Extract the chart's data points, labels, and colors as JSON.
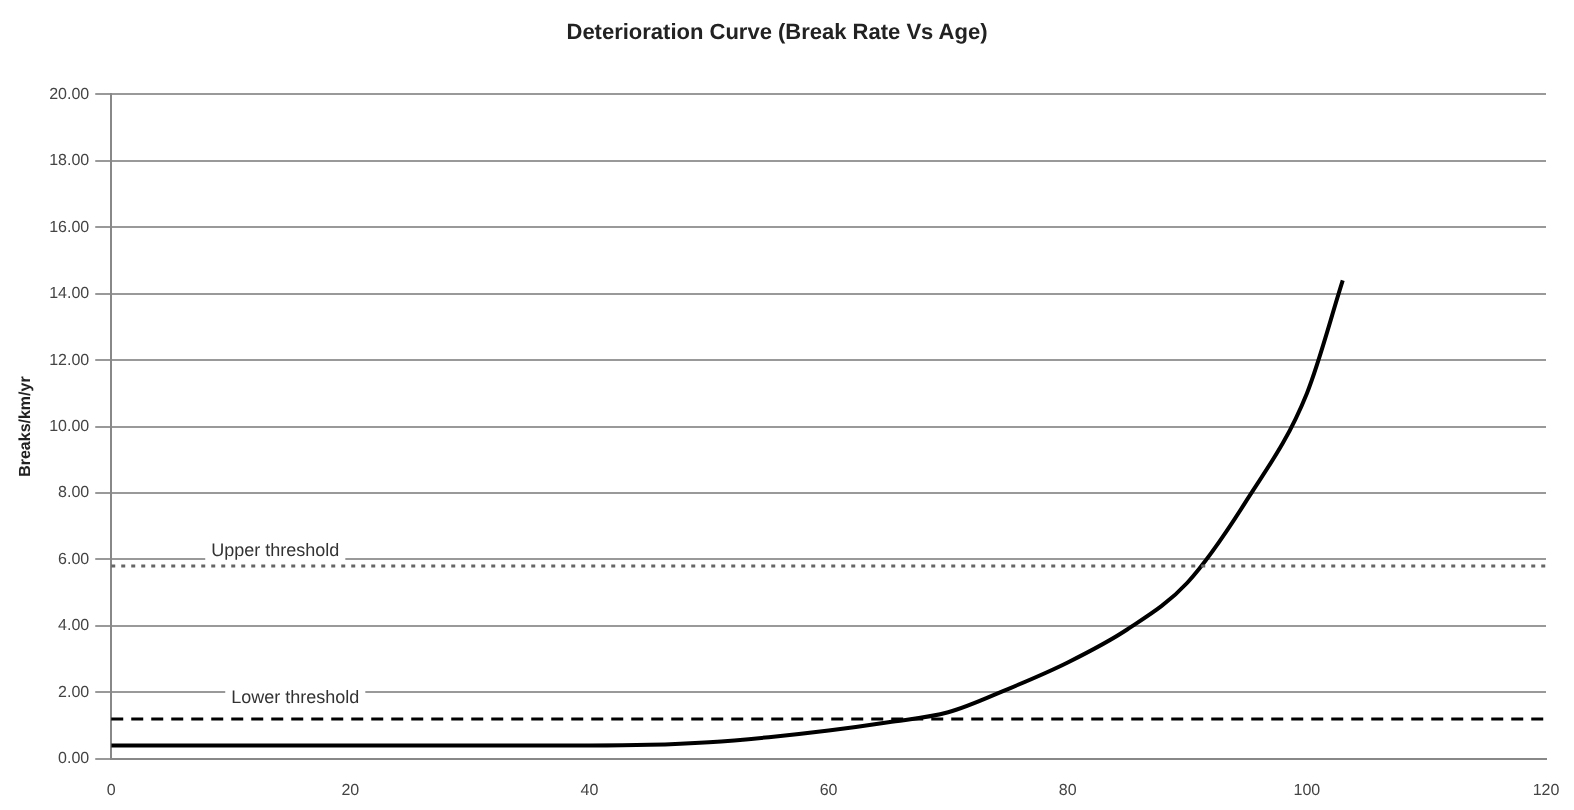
{
  "chart_data": {
    "type": "line",
    "title": "Deterioration Curve (Break Rate Vs Age)",
    "ylabel": "Breaks/km/yr",
    "x": [
      0,
      10,
      20,
      30,
      40,
      45,
      50,
      55,
      60,
      65,
      70,
      75,
      80,
      85,
      90,
      95,
      100,
      103
    ],
    "series": [
      {
        "color": "#000000",
        "values": [
          0.4,
          0.4,
          0.4,
          0.4,
          0.4,
          0.42,
          0.5,
          0.65,
          0.85,
          1.1,
          1.4,
          2.1,
          2.9,
          3.9,
          5.3,
          7.8,
          11.0,
          14.4
        ]
      }
    ],
    "xlim": [
      0,
      120
    ],
    "xticks": [
      0,
      20,
      40,
      60,
      80,
      100,
      120
    ],
    "ylim": [
      0,
      20
    ],
    "yticks": [
      {
        "value": 0,
        "label": "0.00"
      },
      {
        "value": 2,
        "label": "2.00"
      },
      {
        "value": 4,
        "label": "4.00"
      },
      {
        "value": 6,
        "label": "6.00"
      },
      {
        "value": 8,
        "label": "8.00"
      },
      {
        "value": 10,
        "label": "10.00"
      },
      {
        "value": 12,
        "label": "12.00"
      },
      {
        "value": 14,
        "label": "14.00"
      },
      {
        "value": 16,
        "label": "16.00"
      },
      {
        "value": 18,
        "label": "18.00"
      },
      {
        "value": 20,
        "label": "20.00"
      }
    ],
    "ref_lines": [
      {
        "axis": "y",
        "value": 5.8,
        "label": "Upper threshold",
        "color": "#666666",
        "line_style": "dotted"
      },
      {
        "axis": "y",
        "value": 1.2,
        "label": "Lower threshold",
        "color": "#000000",
        "line_style": "dashed"
      }
    ],
    "grid": "y",
    "legend": false,
    "marker": "none",
    "line_style": "solid"
  }
}
